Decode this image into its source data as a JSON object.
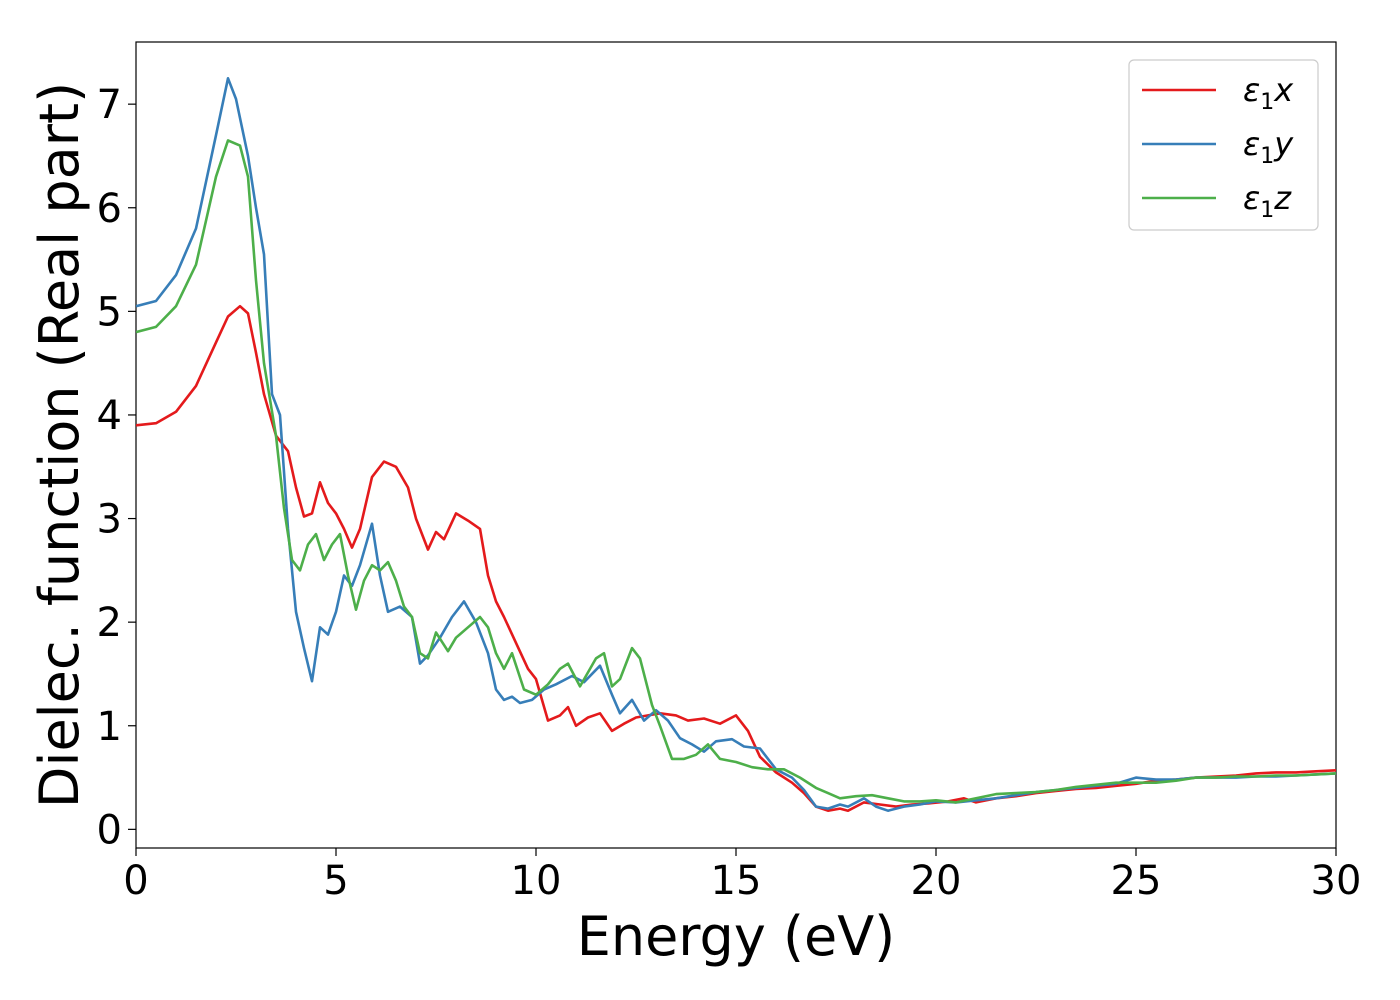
{
  "chart_data": {
    "type": "line",
    "title": "",
    "xlabel": "Energy (eV)",
    "ylabel": "Dielec. function (Real part)",
    "xlim": [
      0,
      30
    ],
    "ylim": [
      -0.18,
      7.6
    ],
    "xticks": [
      0,
      5,
      10,
      15,
      20,
      25,
      30
    ],
    "yticks": [
      0,
      1,
      2,
      3,
      4,
      5,
      6,
      7
    ],
    "grid": false,
    "legend_position": "top-right",
    "series": [
      {
        "name": "ε₁x",
        "legend_main": "ε",
        "legend_sub": "1",
        "legend_tail": "x",
        "color": "#e41a1c",
        "points": [
          [
            0,
            3.9
          ],
          [
            0.5,
            3.92
          ],
          [
            1.0,
            4.03
          ],
          [
            1.5,
            4.28
          ],
          [
            2.0,
            4.7
          ],
          [
            2.3,
            4.95
          ],
          [
            2.6,
            5.05
          ],
          [
            2.8,
            4.98
          ],
          [
            3.0,
            4.6
          ],
          [
            3.2,
            4.2
          ],
          [
            3.5,
            3.8
          ],
          [
            3.8,
            3.65
          ],
          [
            4.0,
            3.3
          ],
          [
            4.2,
            3.02
          ],
          [
            4.4,
            3.05
          ],
          [
            4.6,
            3.35
          ],
          [
            4.8,
            3.15
          ],
          [
            5.0,
            3.05
          ],
          [
            5.2,
            2.9
          ],
          [
            5.4,
            2.72
          ],
          [
            5.6,
            2.9
          ],
          [
            5.9,
            3.4
          ],
          [
            6.2,
            3.55
          ],
          [
            6.5,
            3.5
          ],
          [
            6.8,
            3.3
          ],
          [
            7.0,
            3.0
          ],
          [
            7.3,
            2.7
          ],
          [
            7.5,
            2.87
          ],
          [
            7.7,
            2.8
          ],
          [
            8.0,
            3.05
          ],
          [
            8.3,
            2.98
          ],
          [
            8.6,
            2.9
          ],
          [
            8.8,
            2.45
          ],
          [
            9.0,
            2.2
          ],
          [
            9.2,
            2.05
          ],
          [
            9.5,
            1.8
          ],
          [
            9.8,
            1.55
          ],
          [
            10.0,
            1.45
          ],
          [
            10.3,
            1.05
          ],
          [
            10.6,
            1.1
          ],
          [
            10.8,
            1.18
          ],
          [
            11.0,
            1.0
          ],
          [
            11.3,
            1.08
          ],
          [
            11.6,
            1.12
          ],
          [
            11.9,
            0.95
          ],
          [
            12.2,
            1.02
          ],
          [
            12.5,
            1.08
          ],
          [
            12.8,
            1.1
          ],
          [
            13.1,
            1.12
          ],
          [
            13.5,
            1.1
          ],
          [
            13.8,
            1.05
          ],
          [
            14.2,
            1.07
          ],
          [
            14.6,
            1.02
          ],
          [
            15.0,
            1.1
          ],
          [
            15.3,
            0.95
          ],
          [
            15.6,
            0.7
          ],
          [
            16.0,
            0.55
          ],
          [
            16.4,
            0.45
          ],
          [
            16.7,
            0.35
          ],
          [
            17.0,
            0.22
          ],
          [
            17.3,
            0.18
          ],
          [
            17.6,
            0.2
          ],
          [
            17.8,
            0.18
          ],
          [
            18.2,
            0.26
          ],
          [
            18.6,
            0.24
          ],
          [
            19.0,
            0.22
          ],
          [
            19.4,
            0.24
          ],
          [
            19.8,
            0.25
          ],
          [
            20.3,
            0.27
          ],
          [
            20.7,
            0.3
          ],
          [
            21.0,
            0.26
          ],
          [
            21.5,
            0.3
          ],
          [
            22.0,
            0.32
          ],
          [
            22.5,
            0.35
          ],
          [
            23.0,
            0.37
          ],
          [
            23.5,
            0.39
          ],
          [
            24.0,
            0.4
          ],
          [
            24.5,
            0.42
          ],
          [
            25.0,
            0.44
          ],
          [
            25.5,
            0.47
          ],
          [
            26.0,
            0.48
          ],
          [
            26.5,
            0.5
          ],
          [
            27.0,
            0.51
          ],
          [
            27.5,
            0.52
          ],
          [
            28.0,
            0.54
          ],
          [
            28.5,
            0.55
          ],
          [
            29.0,
            0.55
          ],
          [
            29.5,
            0.56
          ],
          [
            30.0,
            0.57
          ]
        ]
      },
      {
        "name": "ε₁y",
        "legend_main": "ε",
        "legend_sub": "1",
        "legend_tail": "y",
        "color": "#377eb8",
        "points": [
          [
            0,
            5.05
          ],
          [
            0.5,
            5.1
          ],
          [
            1.0,
            5.35
          ],
          [
            1.5,
            5.8
          ],
          [
            2.0,
            6.7
          ],
          [
            2.3,
            7.25
          ],
          [
            2.5,
            7.05
          ],
          [
            2.8,
            6.5
          ],
          [
            3.0,
            6.0
          ],
          [
            3.2,
            5.55
          ],
          [
            3.4,
            4.2
          ],
          [
            3.6,
            4.0
          ],
          [
            3.8,
            2.9
          ],
          [
            4.0,
            2.1
          ],
          [
            4.2,
            1.75
          ],
          [
            4.4,
            1.43
          ],
          [
            4.6,
            1.95
          ],
          [
            4.8,
            1.88
          ],
          [
            5.0,
            2.1
          ],
          [
            5.2,
            2.45
          ],
          [
            5.4,
            2.35
          ],
          [
            5.6,
            2.55
          ],
          [
            5.9,
            2.95
          ],
          [
            6.1,
            2.45
          ],
          [
            6.3,
            2.1
          ],
          [
            6.6,
            2.15
          ],
          [
            6.9,
            2.05
          ],
          [
            7.1,
            1.6
          ],
          [
            7.3,
            1.68
          ],
          [
            7.6,
            1.85
          ],
          [
            7.9,
            2.05
          ],
          [
            8.2,
            2.2
          ],
          [
            8.5,
            2.0
          ],
          [
            8.8,
            1.7
          ],
          [
            9.0,
            1.35
          ],
          [
            9.2,
            1.25
          ],
          [
            9.4,
            1.28
          ],
          [
            9.6,
            1.22
          ],
          [
            9.9,
            1.25
          ],
          [
            10.2,
            1.35
          ],
          [
            10.5,
            1.4
          ],
          [
            10.9,
            1.48
          ],
          [
            11.2,
            1.42
          ],
          [
            11.6,
            1.58
          ],
          [
            11.9,
            1.3
          ],
          [
            12.1,
            1.12
          ],
          [
            12.4,
            1.25
          ],
          [
            12.7,
            1.05
          ],
          [
            13.0,
            1.15
          ],
          [
            13.3,
            1.05
          ],
          [
            13.6,
            0.88
          ],
          [
            13.9,
            0.82
          ],
          [
            14.2,
            0.75
          ],
          [
            14.5,
            0.85
          ],
          [
            14.9,
            0.87
          ],
          [
            15.2,
            0.8
          ],
          [
            15.6,
            0.78
          ],
          [
            16.0,
            0.58
          ],
          [
            16.4,
            0.5
          ],
          [
            16.7,
            0.38
          ],
          [
            17.0,
            0.22
          ],
          [
            17.3,
            0.2
          ],
          [
            17.6,
            0.24
          ],
          [
            17.8,
            0.22
          ],
          [
            18.2,
            0.3
          ],
          [
            18.5,
            0.22
          ],
          [
            18.8,
            0.18
          ],
          [
            19.2,
            0.22
          ],
          [
            19.6,
            0.24
          ],
          [
            20.0,
            0.27
          ],
          [
            20.5,
            0.26
          ],
          [
            21.0,
            0.28
          ],
          [
            21.5,
            0.3
          ],
          [
            22.0,
            0.33
          ],
          [
            22.5,
            0.36
          ],
          [
            23.0,
            0.38
          ],
          [
            23.5,
            0.4
          ],
          [
            24.0,
            0.42
          ],
          [
            24.5,
            0.44
          ],
          [
            25.0,
            0.5
          ],
          [
            25.5,
            0.48
          ],
          [
            26.0,
            0.48
          ],
          [
            26.5,
            0.5
          ],
          [
            27.0,
            0.5
          ],
          [
            27.5,
            0.5
          ],
          [
            28.0,
            0.51
          ],
          [
            28.5,
            0.51
          ],
          [
            29.0,
            0.52
          ],
          [
            29.5,
            0.53
          ],
          [
            30.0,
            0.54
          ]
        ]
      },
      {
        "name": "ε₁z",
        "legend_main": "ε",
        "legend_sub": "1",
        "legend_tail": "z",
        "color": "#4daf4a",
        "points": [
          [
            0,
            4.8
          ],
          [
            0.5,
            4.85
          ],
          [
            1.0,
            5.05
          ],
          [
            1.5,
            5.45
          ],
          [
            2.0,
            6.3
          ],
          [
            2.3,
            6.65
          ],
          [
            2.6,
            6.6
          ],
          [
            2.8,
            6.3
          ],
          [
            3.0,
            5.3
          ],
          [
            3.2,
            4.5
          ],
          [
            3.5,
            3.8
          ],
          [
            3.7,
            3.1
          ],
          [
            3.9,
            2.6
          ],
          [
            4.1,
            2.5
          ],
          [
            4.3,
            2.75
          ],
          [
            4.5,
            2.85
          ],
          [
            4.7,
            2.6
          ],
          [
            4.9,
            2.75
          ],
          [
            5.1,
            2.85
          ],
          [
            5.3,
            2.45
          ],
          [
            5.5,
            2.12
          ],
          [
            5.7,
            2.4
          ],
          [
            5.9,
            2.55
          ],
          [
            6.1,
            2.5
          ],
          [
            6.3,
            2.58
          ],
          [
            6.5,
            2.4
          ],
          [
            6.7,
            2.15
          ],
          [
            6.9,
            2.05
          ],
          [
            7.1,
            1.7
          ],
          [
            7.3,
            1.65
          ],
          [
            7.5,
            1.9
          ],
          [
            7.8,
            1.72
          ],
          [
            8.0,
            1.85
          ],
          [
            8.3,
            1.95
          ],
          [
            8.6,
            2.05
          ],
          [
            8.8,
            1.95
          ],
          [
            9.0,
            1.7
          ],
          [
            9.2,
            1.55
          ],
          [
            9.4,
            1.7
          ],
          [
            9.7,
            1.35
          ],
          [
            10.0,
            1.3
          ],
          [
            10.3,
            1.4
          ],
          [
            10.6,
            1.55
          ],
          [
            10.8,
            1.6
          ],
          [
            11.1,
            1.38
          ],
          [
            11.5,
            1.65
          ],
          [
            11.7,
            1.7
          ],
          [
            11.9,
            1.38
          ],
          [
            12.1,
            1.45
          ],
          [
            12.4,
            1.75
          ],
          [
            12.6,
            1.65
          ],
          [
            12.9,
            1.2
          ],
          [
            13.1,
            1.0
          ],
          [
            13.4,
            0.68
          ],
          [
            13.7,
            0.68
          ],
          [
            14.0,
            0.72
          ],
          [
            14.3,
            0.82
          ],
          [
            14.6,
            0.68
          ],
          [
            15.0,
            0.65
          ],
          [
            15.4,
            0.6
          ],
          [
            15.8,
            0.58
          ],
          [
            16.2,
            0.58
          ],
          [
            16.6,
            0.5
          ],
          [
            17.0,
            0.4
          ],
          [
            17.3,
            0.35
          ],
          [
            17.6,
            0.3
          ],
          [
            18.0,
            0.32
          ],
          [
            18.4,
            0.33
          ],
          [
            18.8,
            0.3
          ],
          [
            19.2,
            0.27
          ],
          [
            19.6,
            0.27
          ],
          [
            20.0,
            0.28
          ],
          [
            20.5,
            0.26
          ],
          [
            21.0,
            0.3
          ],
          [
            21.5,
            0.34
          ],
          [
            22.0,
            0.35
          ],
          [
            22.5,
            0.36
          ],
          [
            23.0,
            0.38
          ],
          [
            23.5,
            0.41
          ],
          [
            24.0,
            0.43
          ],
          [
            24.5,
            0.45
          ],
          [
            25.0,
            0.45
          ],
          [
            25.5,
            0.45
          ],
          [
            26.0,
            0.47
          ],
          [
            26.5,
            0.5
          ],
          [
            27.0,
            0.5
          ],
          [
            27.5,
            0.51
          ],
          [
            28.0,
            0.51
          ],
          [
            28.5,
            0.52
          ],
          [
            29.0,
            0.52
          ],
          [
            29.5,
            0.53
          ],
          [
            30.0,
            0.54
          ]
        ]
      }
    ]
  }
}
